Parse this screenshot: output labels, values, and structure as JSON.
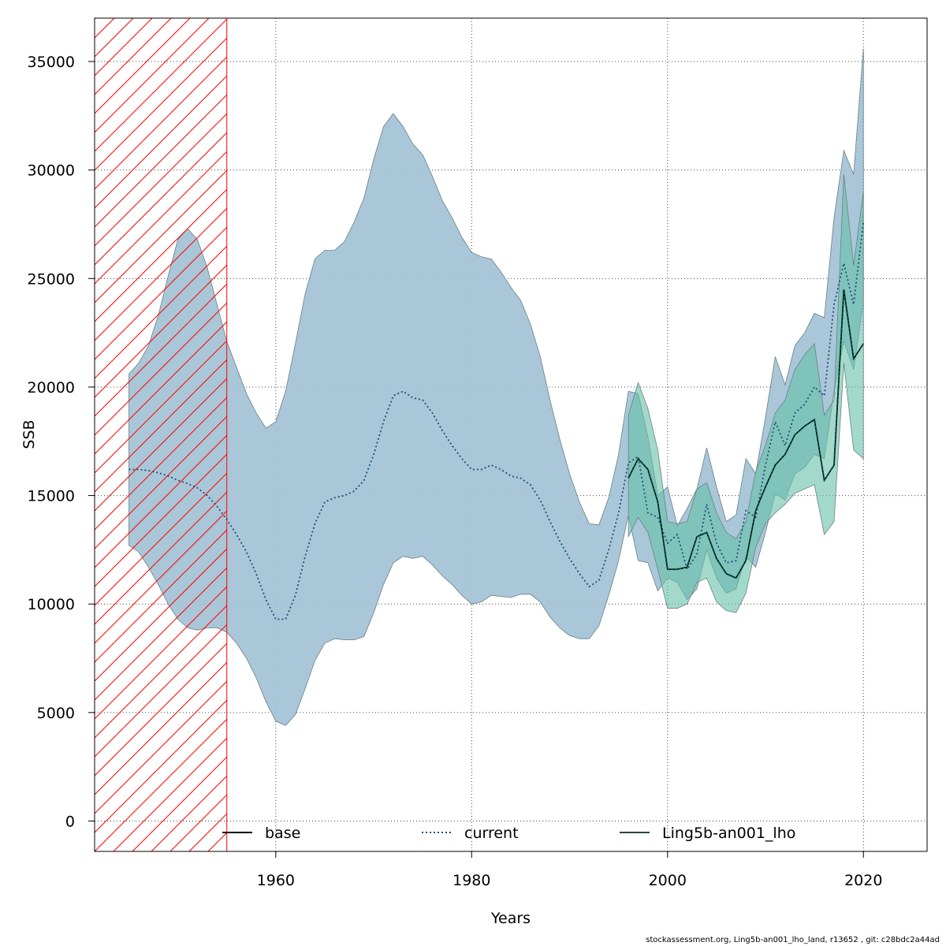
{
  "chart_data": {
    "type": "area",
    "title": "",
    "xlabel": "Years",
    "ylabel": "SSB",
    "xlim": [
      1941.5,
      2026.5
    ],
    "ylim": [
      -1400,
      37000
    ],
    "x_ticks": [
      1960,
      1980,
      2000,
      2020
    ],
    "y_ticks": [
      0,
      5000,
      10000,
      15000,
      20000,
      25000,
      30000,
      35000
    ],
    "grid": true,
    "legend_placement": "bottom",
    "hatched_region": {
      "x_start": 1941.5,
      "x_end": 1955,
      "color": "#ff0000"
    },
    "series": [
      {
        "name": "base",
        "line_color": "#000000",
        "line_style": "solid",
        "x": [
          1996,
          1997,
          1998,
          1999,
          2000,
          2001,
          2002,
          2003,
          2004,
          2005,
          2006,
          2007,
          2008,
          2009,
          2010,
          2011,
          2012,
          2013,
          2014,
          2015,
          2016,
          2017,
          2018,
          2019,
          2020
        ],
        "values": [
          null,
          null,
          null,
          null,
          null,
          null,
          null,
          null,
          null,
          null,
          null,
          null,
          null,
          null,
          null,
          null,
          null,
          null,
          null,
          null,
          null,
          null,
          null,
          null,
          null
        ]
      },
      {
        "name": "current",
        "line_color": "#1f4e79",
        "line_style": "dotted",
        "band_color": "#a4c4d6",
        "x": [
          1945,
          1946,
          1947,
          1948,
          1949,
          1950,
          1951,
          1952,
          1953,
          1954,
          1955,
          1956,
          1957,
          1958,
          1959,
          1960,
          1961,
          1962,
          1963,
          1964,
          1965,
          1966,
          1967,
          1968,
          1969,
          1970,
          1971,
          1972,
          1973,
          1974,
          1975,
          1976,
          1977,
          1978,
          1979,
          1980,
          1981,
          1982,
          1983,
          1984,
          1985,
          1986,
          1987,
          1988,
          1989,
          1990,
          1991,
          1992,
          1993,
          1994,
          1995,
          1996,
          1997,
          1998,
          1999,
          2000,
          2001,
          2002,
          2003,
          2004,
          2005,
          2006,
          2007,
          2008,
          2009,
          2010,
          2011,
          2012,
          2013,
          2014,
          2015,
          2016,
          2017,
          2018,
          2019,
          2020
        ],
        "values": [
          16200,
          16200,
          16150,
          16050,
          15900,
          15700,
          15550,
          15350,
          15000,
          14500,
          13900,
          13200,
          12400,
          11400,
          10200,
          9300,
          9300,
          10400,
          12200,
          13700,
          14700,
          14900,
          15000,
          15200,
          15700,
          16900,
          18400,
          19600,
          19800,
          19500,
          19400,
          18800,
          18000,
          17300,
          16700,
          16200,
          16200,
          16400,
          16200,
          15900,
          15800,
          15500,
          14800,
          13800,
          12900,
          12100,
          11400,
          10800,
          11100,
          12500,
          14200,
          16500,
          16800,
          14200,
          14000,
          12800,
          13200,
          11600,
          12300,
          14600,
          12800,
          11900,
          12000,
          14300,
          14000,
          16400,
          18400,
          17300,
          18800,
          19200,
          20000,
          19600,
          23800,
          25700,
          23800,
          27600
        ],
        "lower": [
          12700,
          12400,
          11700,
          10900,
          10000,
          9300,
          8900,
          8800,
          8900,
          8900,
          8700,
          8200,
          7500,
          6600,
          5500,
          4600,
          4400,
          4900,
          6100,
          7400,
          8200,
          8400,
          8350,
          8350,
          8500,
          9600,
          10900,
          11900,
          12200,
          12100,
          12200,
          11800,
          11300,
          10900,
          10400,
          10000,
          10100,
          10400,
          10350,
          10300,
          10450,
          10450,
          10100,
          9400,
          8900,
          8550,
          8400,
          8400,
          9000,
          10400,
          12000,
          14100,
          12000,
          11900,
          10600,
          11200,
          11000,
          10200,
          10700,
          12500,
          11200,
          10500,
          10700,
          12200,
          11700,
          13300,
          15100,
          14800,
          16000,
          16300,
          16900,
          16700,
          19800,
          22100,
          20800,
          23900
        ],
        "upper": [
          20600,
          21100,
          21900,
          23300,
          25100,
          26800,
          27300,
          26800,
          25500,
          23800,
          22100,
          20900,
          19700,
          18800,
          18100,
          18400,
          19800,
          22000,
          24300,
          25900,
          26300,
          26300,
          26700,
          27600,
          28700,
          30500,
          32000,
          32600,
          32000,
          31200,
          30700,
          29700,
          28600,
          27800,
          26900,
          26200,
          26000,
          25900,
          25300,
          24600,
          24000,
          22900,
          21400,
          19400,
          17600,
          16000,
          14700,
          13700,
          13650,
          14900,
          16900,
          19800,
          19700,
          17700,
          15000,
          15400,
          13600,
          14400,
          15300,
          17200,
          15400,
          13800,
          14100,
          16700,
          16000,
          18600,
          21400,
          20100,
          21900,
          22500,
          23400,
          23200,
          27800,
          30900,
          29800,
          35600
        ]
      },
      {
        "name": "Ling5b-an001_lho",
        "line_color": "#004c3f",
        "line_style": "dashed",
        "band_color": "#66bfa8",
        "x": [
          1996,
          1997,
          1998,
          1999,
          2000,
          2001,
          2002,
          2003,
          2004,
          2005,
          2006,
          2007,
          2008,
          2009,
          2010,
          2011,
          2012,
          2013,
          2014,
          2015,
          2016,
          2017,
          2018,
          2019,
          2020
        ],
        "values": [
          15800,
          16700,
          16200,
          14700,
          11600,
          11600,
          11700,
          13100,
          13300,
          12100,
          11400,
          11200,
          12000,
          14300,
          15400,
          16400,
          16900,
          17800,
          18200,
          18500,
          15700,
          16400,
          24500,
          21300,
          22000
        ],
        "lower": [
          13100,
          14000,
          13300,
          11600,
          9800,
          9800,
          10000,
          11000,
          11200,
          10100,
          9700,
          9600,
          10500,
          12600,
          13700,
          14200,
          14600,
          15100,
          15300,
          15500,
          13200,
          13800,
          21100,
          17100,
          16700
        ],
        "upper": [
          18700,
          20200,
          19000,
          17100,
          13800,
          13700,
          13800,
          15300,
          15600,
          14200,
          13300,
          13000,
          13800,
          16100,
          17300,
          18800,
          19400,
          20800,
          21500,
          22000,
          18700,
          19400,
          29800,
          25600,
          29000
        ]
      }
    ]
  },
  "footer": "stockassessment.org, Ling5b-an001_lho_land, r13652 , git: c28bdc2a44ad"
}
